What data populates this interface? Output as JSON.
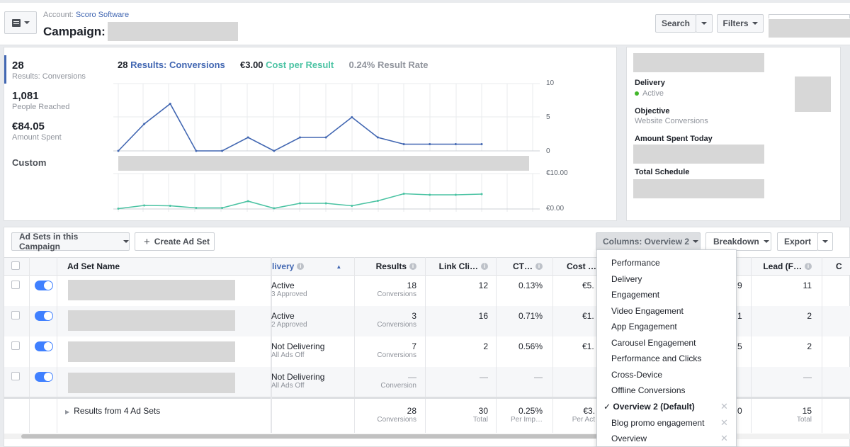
{
  "header": {
    "account_label": "Account:",
    "account_name": "Scoro Software",
    "campaign_label": "Campaign:",
    "search_label": "Search",
    "filters_label": "Filters"
  },
  "stats": [
    {
      "value": "28",
      "label": "Results: Conversions"
    },
    {
      "value": "1,081",
      "label": "People Reached"
    },
    {
      "value": "€84.05",
      "label": "Amount Spent"
    },
    {
      "value": "Custom",
      "label": ""
    }
  ],
  "metrics": {
    "results_num": "28",
    "results_label": "Results: Conversions",
    "cpr_num": "€3.00",
    "cpr_label": "Cost per Result",
    "rate_num": "0.24%",
    "rate_label": "Result Rate"
  },
  "chart_data": [
    {
      "type": "line",
      "series": [
        {
          "name": "Results: Conversions",
          "values": [
            0,
            4,
            7,
            0,
            0,
            2,
            0,
            2,
            2,
            5,
            2,
            1,
            1,
            1,
            1
          ]
        }
      ],
      "y_ticks": [
        "10",
        "5",
        "0"
      ],
      "ylim": [
        0,
        10
      ],
      "color": "#4267b2"
    },
    {
      "type": "line",
      "series": [
        {
          "name": "Cost per Result",
          "values": [
            0.1,
            1.0,
            0.9,
            0.3,
            0.3,
            2.2,
            0.2,
            1.6,
            1.6,
            0.9,
            2.3,
            4.3,
            4.0,
            4.0,
            4.2
          ]
        }
      ],
      "y_ticks": [
        "€10.00",
        "€0.00"
      ],
      "ylim": [
        0,
        10
      ],
      "color": "#4bc3a3"
    }
  ],
  "side": {
    "delivery_h": "Delivery",
    "delivery_v": "Active",
    "objective_h": "Objective",
    "objective_v": "Website Conversions",
    "spent_today_h": "Amount Spent Today",
    "schedule_h": "Total Schedule"
  },
  "toolbar": {
    "adsets_label": "Ad Sets in this Campaign",
    "create_label": "Create Ad Set",
    "columns_label": "Columns: Overview 2",
    "breakdown_label": "Breakdown",
    "export_label": "Export"
  },
  "table": {
    "headers": {
      "name": "Ad Set Name",
      "delivery": "livery",
      "results": "Results",
      "link": "Link Cli…",
      "ctr": "CT…",
      "cost": "Cost …",
      "lead": "Lead (F…",
      "last": "C"
    },
    "rows": [
      {
        "delivery": "Active",
        "delivery_sub": "3 Approved",
        "results": "18",
        "results_sub": "Conversions",
        "link": "12",
        "ctr": "0.13%",
        "cost": "€5.",
        "hidden": "9",
        "lead": "11"
      },
      {
        "delivery": "Active",
        "delivery_sub": "2 Approved",
        "results": "3",
        "results_sub": "Conversions",
        "link": "16",
        "ctr": "0.71%",
        "cost": "€1.",
        "hidden": "1",
        "lead": "2"
      },
      {
        "delivery": "Not Delivering",
        "delivery_sub": "All Ads Off",
        "results": "7",
        "results_sub": "Conversions",
        "link": "2",
        "ctr": "0.56%",
        "cost": "€1.",
        "hidden": "5",
        "lead": "2"
      },
      {
        "delivery": "Not Delivering",
        "delivery_sub": "All Ads Off",
        "results": "—",
        "results_sub": "Conversion",
        "link": "—",
        "ctr": "—",
        "cost": "",
        "hidden": "",
        "lead": "—"
      }
    ],
    "totals": {
      "label": "Results from 4 Ad Sets",
      "results": "28",
      "results_sub": "Conversions",
      "link": "30",
      "link_sub": "Total",
      "ctr": "0.25%",
      "ctr_sub": "Per Imp…",
      "cost": "€3.",
      "cost_sub": "Per Act",
      "hidden": "0",
      "lead": "15",
      "lead_sub": "Total"
    }
  },
  "columns_menu": {
    "items": [
      {
        "label": "Performance",
        "checked": false,
        "removable": false
      },
      {
        "label": "Delivery",
        "checked": false,
        "removable": false
      },
      {
        "label": "Engagement",
        "checked": false,
        "removable": false
      },
      {
        "label": "Video Engagement",
        "checked": false,
        "removable": false
      },
      {
        "label": "App Engagement",
        "checked": false,
        "removable": false
      },
      {
        "label": "Carousel Engagement",
        "checked": false,
        "removable": false
      },
      {
        "label": "Performance and Clicks",
        "checked": false,
        "removable": false
      },
      {
        "label": "Cross-Device",
        "checked": false,
        "removable": false
      },
      {
        "label": "Offline Conversions",
        "checked": false,
        "removable": false
      },
      {
        "label": "✓ Overview 2 (Default)",
        "checked": true,
        "removable": true
      },
      {
        "label": "Blog promo engagement",
        "checked": false,
        "removable": true
      },
      {
        "label": "Overview",
        "checked": false,
        "removable": true
      }
    ]
  }
}
